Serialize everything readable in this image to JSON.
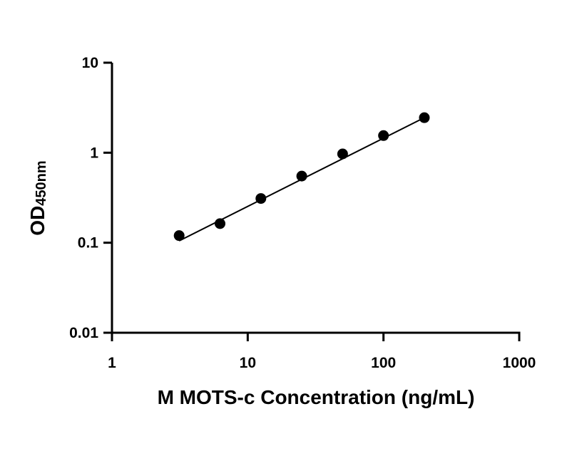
{
  "chart_data": {
    "type": "scatter",
    "xscale": "log",
    "yscale": "log",
    "xlim": [
      1,
      1000
    ],
    "ylim": [
      0.01,
      10
    ],
    "xticks": [
      1,
      10,
      100,
      1000
    ],
    "yticks": [
      0.01,
      0.1,
      1,
      10
    ],
    "xtick_labels": [
      "1",
      "10",
      "100",
      "1000"
    ],
    "ytick_labels": [
      "0.01",
      "0.1",
      "1",
      "10"
    ],
    "xlabel": "M MOTS-c Concentration (ng/mL)",
    "ylabel": {
      "main": "OD",
      "subscript": "450nm"
    },
    "grid": false,
    "legend": "none",
    "marker_color": "#000000",
    "line_color": "#000000",
    "series": [
      {
        "x": [
          3.125,
          6.25,
          12.5,
          25,
          50,
          100,
          200
        ],
        "y": [
          0.12,
          0.163,
          0.31,
          0.55,
          0.97,
          1.55,
          2.45
        ]
      }
    ],
    "fit_line": {
      "x": [
        3.125,
        200
      ],
      "y": [
        0.105,
        2.45
      ]
    }
  }
}
